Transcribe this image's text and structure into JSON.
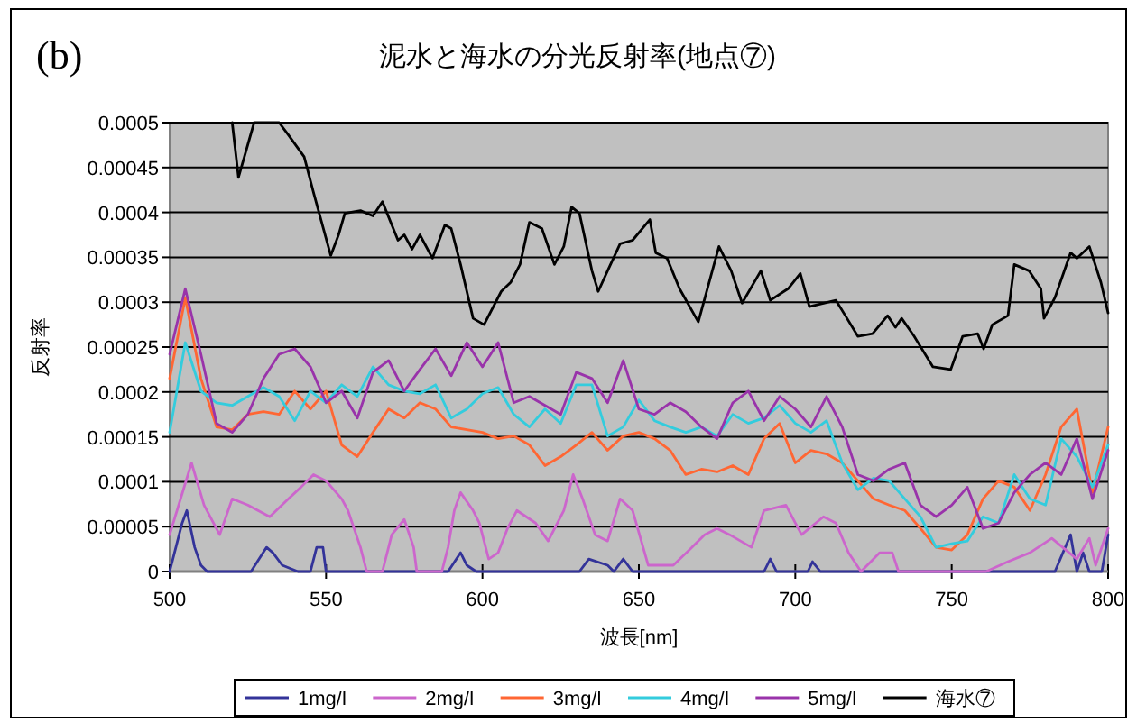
{
  "chart_data": {
    "type": "line",
    "title": "泥水と海水の分光反射率(地点⑦)",
    "xlabel": "波長[nm]",
    "ylabel": "反射率",
    "annotations": [
      "(b)"
    ],
    "xlim": [
      500,
      800
    ],
    "xticks": [
      500,
      550,
      600,
      650,
      700,
      750,
      800
    ],
    "ylim": [
      0,
      0.0005
    ],
    "yticks": [
      0,
      {
        "value": 5e-05,
        "label": "0.00005"
      },
      0.0001,
      0.00015,
      0.0002,
      0.00025,
      0.0003,
      0.00035,
      0.0004,
      0.00045,
      0.0005
    ],
    "grid": "y",
    "legend": "bottom",
    "marker": "none",
    "line_style": "solid",
    "x": [
      500,
      505,
      510,
      515,
      520,
      525,
      530,
      535,
      540,
      545,
      550,
      555,
      560,
      565,
      570,
      575,
      580,
      585,
      590,
      595,
      600,
      605,
      610,
      615,
      620,
      625,
      630,
      635,
      640,
      645,
      650,
      655,
      660,
      665,
      670,
      675,
      680,
      685,
      690,
      695,
      700,
      705,
      710,
      715,
      720,
      725,
      730,
      735,
      740,
      745,
      750,
      755,
      760,
      765,
      770,
      775,
      780,
      785,
      790,
      795,
      800
    ],
    "series": [
      {
        "name": "1mg/l",
        "color": "#333399",
        "x": [
          500,
          504,
          505.5,
          508,
          510,
          512,
          526,
          531,
          533,
          536,
          541,
          545,
          547,
          549,
          550,
          589,
          593,
          595,
          598,
          631,
          634,
          640,
          642,
          645,
          648,
          690,
          692,
          694,
          704,
          705.5,
          708,
          783,
          788,
          790,
          792,
          794,
          798,
          800
        ],
        "values": [
          0,
          5.4e-05,
          6.8e-05,
          2.7e-05,
          7e-06,
          0,
          0,
          2.7e-05,
          2.1e-05,
          7e-06,
          0,
          0,
          2.7e-05,
          2.7e-05,
          0,
          0,
          2.1e-05,
          7e-06,
          0,
          0,
          1.4e-05,
          7e-06,
          0,
          1.4e-05,
          0,
          0,
          1.4e-05,
          0,
          0,
          1.1e-05,
          0,
          0,
          4.1e-05,
          0,
          2.1e-05,
          0,
          0,
          4.1e-05
        ]
      },
      {
        "name": "2mg/l",
        "color": "#cc66cc",
        "x": [
          500,
          507,
          511,
          516,
          520,
          525,
          532,
          538,
          542,
          546,
          550,
          555,
          557,
          561,
          563,
          568,
          571,
          575,
          578,
          579,
          587,
          589,
          591,
          593,
          597,
          599,
          602,
          605,
          608,
          611,
          617,
          621,
          626,
          629,
          632,
          636,
          640,
          644,
          648,
          653,
          661,
          667,
          671,
          675,
          679,
          686,
          690,
          697,
          702,
          709,
          713,
          717,
          721,
          727,
          731,
          733,
          761,
          768,
          775,
          782,
          790,
          794,
          796,
          800
        ],
        "values": [
          4.1e-05,
          0.000121,
          7.4e-05,
          4.1e-05,
          8.1e-05,
          7.4e-05,
          6.1e-05,
          8.1e-05,
          9.4e-05,
          0.000108,
          0.000101,
          8.1e-05,
          6.8e-05,
          2.7e-05,
          0,
          0,
          4.1e-05,
          5.8e-05,
          2.7e-05,
          0,
          0,
          2.7e-05,
          6.8e-05,
          8.8e-05,
          6.8e-05,
          5.4e-05,
          1.4e-05,
          2.1e-05,
          4.8e-05,
          6.8e-05,
          5.4e-05,
          3.4e-05,
          6.8e-05,
          0.000108,
          8.1e-05,
          4.1e-05,
          3.4e-05,
          8.1e-05,
          6.8e-05,
          7e-06,
          7e-06,
          2.7e-05,
          4.1e-05,
          4.8e-05,
          4.1e-05,
          2.7e-05,
          6.8e-05,
          7.4e-05,
          4.1e-05,
          6.1e-05,
          5.4e-05,
          2.1e-05,
          0,
          2.1e-05,
          2.1e-05,
          0,
          0,
          1.1e-05,
          2.1e-05,
          3.7e-05,
          1.4e-05,
          3.7e-05,
          7e-06,
          4.8e-05
        ]
      },
      {
        "name": "3mg/l",
        "color": "#ff6633",
        "values": [
          0.000215,
          0.000305,
          0.000215,
          0.000161,
          0.000158,
          0.000175,
          0.000178,
          0.000175,
          0.000201,
          0.000181,
          0.000201,
          0.000141,
          0.000128,
          0.000155,
          0.000181,
          0.000171,
          0.000188,
          0.000181,
          0.000161,
          0.000158,
          0.000155,
          0.000148,
          0.000151,
          0.000141,
          0.000118,
          0.000128,
          0.000141,
          0.000155,
          0.000135,
          0.000151,
          0.000155,
          0.000148,
          0.000135,
          0.000108,
          0.000114,
          0.000111,
          0.000118,
          0.000108,
          0.000148,
          0.000165,
          0.000121,
          0.000135,
          0.000131,
          0.000121,
          0.000101,
          8.1e-05,
          7.4e-05,
          6.8e-05,
          4.8e-05,
          2.7e-05,
          2.4e-05,
          4.1e-05,
          8.1e-05,
          0.000101,
          9.4e-05,
          6.8e-05,
          0.000108,
          0.000161,
          0.000181,
          8.8e-05,
          0.000161
        ]
      },
      {
        "name": "4mg/l",
        "color": "#33ccdd",
        "values": [
          0.000155,
          0.000255,
          0.000201,
          0.000188,
          0.000185,
          0.000195,
          0.000205,
          0.000195,
          0.000168,
          0.000201,
          0.000188,
          0.000208,
          0.000195,
          0.000228,
          0.000208,
          0.000201,
          0.000198,
          0.000208,
          0.000171,
          0.000181,
          0.000198,
          0.000205,
          0.000175,
          0.000161,
          0.000181,
          0.000165,
          0.000208,
          0.000208,
          0.000151,
          0.000161,
          0.000191,
          0.000168,
          0.000161,
          0.000155,
          0.000161,
          0.000151,
          0.000175,
          0.000165,
          0.000171,
          0.000185,
          0.000165,
          0.000155,
          0.000168,
          0.000121,
          9.1e-05,
          0.000104,
          0.000101,
          8.1e-05,
          6.1e-05,
          2.7e-05,
          3.1e-05,
          3.4e-05,
          6.1e-05,
          5.4e-05,
          0.000108,
          8.1e-05,
          7.4e-05,
          0.000148,
          0.000128,
          9.4e-05,
          0.000141
        ]
      },
      {
        "name": "5mg/l",
        "color": "#9933aa",
        "values": [
          0.000242,
          0.000315,
          0.000242,
          0.000165,
          0.000155,
          0.000175,
          0.000215,
          0.000242,
          0.000248,
          0.000228,
          0.000188,
          0.000201,
          0.000171,
          0.000222,
          0.000235,
          0.000201,
          0.000225,
          0.000248,
          0.000218,
          0.000255,
          0.000228,
          0.000255,
          0.000188,
          0.000195,
          0.000185,
          0.000175,
          0.000222,
          0.000215,
          0.000188,
          0.000235,
          0.000181,
          0.000175,
          0.000188,
          0.000178,
          0.000161,
          0.000148,
          0.000188,
          0.000201,
          0.000168,
          0.000195,
          0.000181,
          0.000161,
          0.000195,
          0.000161,
          0.000108,
          0.000101,
          0.000114,
          0.000121,
          7.4e-05,
          6.1e-05,
          7.4e-05,
          9.4e-05,
          4.8e-05,
          5.4e-05,
          8.8e-05,
          0.000108,
          0.000121,
          0.000108,
          0.000148,
          8.1e-05,
          0.000135
        ]
      },
      {
        "name": "海水⑦",
        "color": "#000000",
        "x": [
          520,
          522,
          527,
          535,
          538,
          543,
          546,
          551.5,
          554,
          556,
          561,
          565,
          568,
          573,
          575,
          577.5,
          580,
          584,
          588,
          590,
          593,
          597,
          600.5,
          606,
          609,
          612,
          615,
          619,
          623,
          626,
          628.5,
          631,
          635,
          637,
          640,
          644,
          648,
          653.5,
          655.4,
          659,
          663,
          669,
          675.6,
          679.5,
          683,
          689,
          692,
          697.7,
          701.6,
          704.5,
          713,
          716,
          720,
          724.7,
          729.5,
          732,
          734,
          738,
          744,
          749.7,
          753.5,
          758.3,
          760.2,
          763,
          768,
          770,
          774.7,
          778.5,
          779.5,
          783,
          788,
          790,
          794,
          797.7,
          800
        ],
        "values": [
          0.0005,
          0.000439,
          0.0005,
          0.0005,
          0.000486,
          0.000462,
          0.000422,
          0.000352,
          0.000375,
          0.000399,
          0.000402,
          0.000396,
          0.000412,
          0.000369,
          0.000375,
          0.000359,
          0.000375,
          0.000349,
          0.000386,
          0.000382,
          0.000342,
          0.000282,
          0.000275,
          0.000312,
          0.000322,
          0.000342,
          0.000389,
          0.000382,
          0.000342,
          0.000362,
          0.000406,
          0.000399,
          0.000335,
          0.000312,
          0.000335,
          0.000365,
          0.000369,
          0.000392,
          0.000355,
          0.000349,
          0.000315,
          0.000278,
          0.000362,
          0.000335,
          0.000299,
          0.000335,
          0.000302,
          0.000315,
          0.000332,
          0.000295,
          0.000302,
          0.000285,
          0.000262,
          0.000265,
          0.000285,
          0.000272,
          0.000282,
          0.000262,
          0.000228,
          0.000225,
          0.000262,
          0.000265,
          0.000248,
          0.000275,
          0.000285,
          0.000342,
          0.000335,
          0.000315,
          0.000282,
          0.000305,
          0.000355,
          0.000349,
          0.000362,
          0.000322,
          0.000288
        ]
      }
    ]
  }
}
